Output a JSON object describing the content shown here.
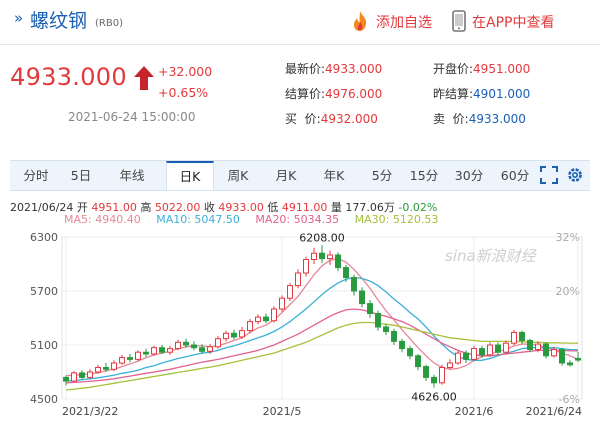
{
  "header": {
    "mark": "»",
    "name": "螺纹钢",
    "code": "(RB0)",
    "fav_label": "添加自选",
    "app_label": "在APP中查看",
    "fav_icon": "flame-icon",
    "app_icon": "phone-icon"
  },
  "quote": {
    "price": "4933.000",
    "change": "+32.000",
    "change_pct": "+0.65%",
    "time": "2021-06-24 15:00:00",
    "fields": [
      {
        "k": "最新价:",
        "v": "4933.000"
      },
      {
        "k": "开盘价:",
        "v": "4951.000"
      },
      {
        "k": "结算价:",
        "v": "4976.000"
      },
      {
        "k": "昨结算:",
        "v": "4901.000"
      },
      {
        "k": "买  价:",
        "v": "4932.000"
      },
      {
        "k": "卖  价:",
        "v": "4933.000"
      }
    ]
  },
  "tabs": [
    "分时",
    "5日",
    "年线",
    "日K",
    "周K",
    "月K",
    "年K",
    "5分",
    "15分",
    "30分",
    "60分"
  ],
  "active_tab": "日K",
  "ohlc": {
    "date": "2021/06/24",
    "open_label": "开",
    "open": "4951.00",
    "high_label": "高",
    "high": "5022.00",
    "close_label": "收",
    "close": "4933.00",
    "low_label": "低",
    "low": "4911.00",
    "vol_label": "量",
    "vol": "177.06万",
    "pct": "-0.02%"
  },
  "ma": [
    {
      "label": "MA5: 4940.40",
      "color": "#e6879b"
    },
    {
      "label": "MA10: 5047.50",
      "color": "#3ab0d8"
    },
    {
      "label": "MA20: 5034.35",
      "color": "#e06290"
    },
    {
      "label": "MA30: 5120.53",
      "color": "#a6c13a"
    }
  ],
  "watermark": "sina新浪财经",
  "colors": {
    "up": "#e4393c",
    "down": "#2a9a3e",
    "accent": "#1a5fb4"
  },
  "chart_data": {
    "type": "candlestick",
    "title": "",
    "y_ticks": [
      "6300",
      "5700",
      "5100",
      "4500"
    ],
    "y_range": [
      4500,
      6300
    ],
    "pct_ticks": [
      "32%",
      "20%",
      "",
      "-6%"
    ],
    "x_labels": [
      "2021/3/22",
      "2021/5",
      "2021/6",
      "2021/6/24"
    ],
    "x_label_index": [
      0,
      27,
      51,
      64
    ],
    "max_label": "6208.00",
    "min_label": "4626.00",
    "max_index": 32,
    "min_index": 46,
    "grid": true,
    "candles": [
      [
        4740,
        4700,
        4760,
        4650
      ],
      [
        4700,
        4790,
        4810,
        4690
      ],
      [
        4790,
        4740,
        4820,
        4720
      ],
      [
        4740,
        4800,
        4830,
        4720
      ],
      [
        4800,
        4850,
        4880,
        4780
      ],
      [
        4850,
        4830,
        4900,
        4800
      ],
      [
        4830,
        4900,
        4930,
        4810
      ],
      [
        4900,
        4960,
        4990,
        4880
      ],
      [
        4960,
        4940,
        5000,
        4910
      ],
      [
        4940,
        5020,
        5040,
        4920
      ],
      [
        5020,
        5000,
        5060,
        4970
      ],
      [
        5000,
        5070,
        5090,
        4980
      ],
      [
        5070,
        5020,
        5100,
        5000
      ],
      [
        5020,
        5060,
        5090,
        4990
      ],
      [
        5060,
        5130,
        5160,
        5040
      ],
      [
        5130,
        5100,
        5170,
        5070
      ],
      [
        5100,
        5070,
        5140,
        5040
      ],
      [
        5070,
        5030,
        5110,
        5000
      ],
      [
        5030,
        5080,
        5110,
        5000
      ],
      [
        5080,
        5170,
        5200,
        5060
      ],
      [
        5170,
        5230,
        5260,
        5140
      ],
      [
        5230,
        5190,
        5270,
        5160
      ],
      [
        5190,
        5260,
        5300,
        5170
      ],
      [
        5260,
        5360,
        5390,
        5230
      ],
      [
        5360,
        5410,
        5440,
        5330
      ],
      [
        5410,
        5370,
        5450,
        5340
      ],
      [
        5370,
        5500,
        5530,
        5350
      ],
      [
        5500,
        5620,
        5650,
        5470
      ],
      [
        5620,
        5760,
        5790,
        5590
      ],
      [
        5760,
        5900,
        5940,
        5730
      ],
      [
        5900,
        6050,
        6080,
        5860
      ],
      [
        6050,
        6120,
        6180,
        6000
      ],
      [
        6120,
        6060,
        6208,
        6010
      ],
      [
        6060,
        6100,
        6150,
        5990
      ],
      [
        6100,
        5960,
        6130,
        5920
      ],
      [
        5960,
        5850,
        5990,
        5800
      ],
      [
        5850,
        5700,
        5880,
        5650
      ],
      [
        5700,
        5560,
        5740,
        5520
      ],
      [
        5560,
        5450,
        5600,
        5400
      ],
      [
        5450,
        5300,
        5480,
        5260
      ],
      [
        5300,
        5250,
        5330,
        5210
      ],
      [
        5250,
        5140,
        5280,
        5100
      ],
      [
        5140,
        5060,
        5170,
        5020
      ],
      [
        5060,
        4980,
        5090,
        4940
      ],
      [
        4980,
        4860,
        5000,
        4820
      ],
      [
        4860,
        4740,
        4880,
        4700
      ],
      [
        4740,
        4680,
        4770,
        4626
      ],
      [
        4680,
        4850,
        4880,
        4660
      ],
      [
        4850,
        4900,
        4940,
        4830
      ],
      [
        4900,
        5010,
        5040,
        4880
      ],
      [
        5010,
        4940,
        5040,
        4900
      ],
      [
        4940,
        5060,
        5090,
        4920
      ],
      [
        5060,
        4990,
        5090,
        4960
      ],
      [
        4990,
        5100,
        5130,
        4970
      ],
      [
        5100,
        5020,
        5130,
        4990
      ],
      [
        5020,
        5120,
        5150,
        5000
      ],
      [
        5120,
        5240,
        5270,
        5100
      ],
      [
        5240,
        5150,
        5260,
        5110
      ],
      [
        5150,
        5050,
        5170,
        5020
      ],
      [
        5050,
        5110,
        5140,
        5020
      ],
      [
        5110,
        4980,
        5130,
        4950
      ],
      [
        4980,
        5050,
        5080,
        4960
      ],
      [
        5050,
        4900,
        5070,
        4870
      ],
      [
        4900,
        4880,
        4930,
        4860
      ],
      [
        4951,
        4933,
        5022,
        4911
      ]
    ],
    "ma_lines": [
      {
        "name": "MA5",
        "color": "#e6879b",
        "values": [
          4760,
          4765,
          4770,
          4780,
          4790,
          4815,
          4830,
          4860,
          4890,
          4920,
          4960,
          4990,
          5010,
          5030,
          5060,
          5080,
          5090,
          5090,
          5080,
          5090,
          5120,
          5150,
          5180,
          5240,
          5290,
          5320,
          5380,
          5460,
          5550,
          5640,
          5760,
          5880,
          5980,
          6040,
          6060,
          6020,
          5940,
          5840,
          5730,
          5600,
          5480,
          5380,
          5270,
          5170,
          5070,
          4980,
          4900,
          4850,
          4830,
          4840,
          4870,
          4930,
          4970,
          5000,
          5030,
          5050,
          5090,
          5110,
          5110,
          5100,
          5070,
          5050,
          5010,
          4980,
          4940
        ]
      },
      {
        "name": "MA10",
        "color": "#3ab0d8",
        "values": [
          4700,
          4705,
          4715,
          4725,
          4735,
          4750,
          4765,
          4785,
          4800,
          4820,
          4850,
          4870,
          4900,
          4925,
          4950,
          4970,
          4990,
          5010,
          5020,
          5040,
          5070,
          5090,
          5120,
          5150,
          5180,
          5210,
          5250,
          5300,
          5360,
          5430,
          5500,
          5580,
          5660,
          5730,
          5790,
          5830,
          5850,
          5840,
          5810,
          5760,
          5690,
          5610,
          5540,
          5460,
          5390,
          5300,
          5200,
          5110,
          5030,
          4970,
          4940,
          4930,
          4930,
          4950,
          4980,
          5010,
          5030,
          5060,
          5070,
          5070,
          5070,
          5070,
          5060,
          5050,
          5047
        ]
      },
      {
        "name": "MA20",
        "color": "#e06290",
        "values": [
          4680,
          4685,
          4690,
          4695,
          4705,
          4715,
          4725,
          4740,
          4755,
          4770,
          4785,
          4800,
          4815,
          4830,
          4850,
          4870,
          4890,
          4910,
          4925,
          4940,
          4960,
          4980,
          5000,
          5020,
          5040,
          5070,
          5100,
          5140,
          5180,
          5220,
          5270,
          5320,
          5370,
          5420,
          5460,
          5490,
          5500,
          5490,
          5470,
          5440,
          5420,
          5390,
          5360,
          5320,
          5270,
          5220,
          5170,
          5120,
          5080,
          5040,
          5010,
          4990,
          4980,
          4980,
          4990,
          5000,
          5010,
          5020,
          5030,
          5040,
          5040,
          5040,
          5040,
          5035,
          5034
        ]
      },
      {
        "name": "MA30",
        "color": "#a6c13a",
        "values": [
          4600,
          4610,
          4620,
          4630,
          4645,
          4660,
          4675,
          4690,
          4705,
          4720,
          4735,
          4750,
          4765,
          4780,
          4795,
          4810,
          4825,
          4840,
          4855,
          4870,
          4890,
          4910,
          4930,
          4950,
          4970,
          4990,
          5010,
          5040,
          5070,
          5100,
          5130,
          5170,
          5210,
          5250,
          5290,
          5320,
          5340,
          5350,
          5350,
          5340,
          5330,
          5320,
          5300,
          5280,
          5260,
          5240,
          5220,
          5200,
          5180,
          5170,
          5160,
          5150,
          5140,
          5140,
          5140,
          5140,
          5140,
          5135,
          5130,
          5130,
          5125,
          5125,
          5122,
          5121,
          5120
        ]
      }
    ]
  }
}
